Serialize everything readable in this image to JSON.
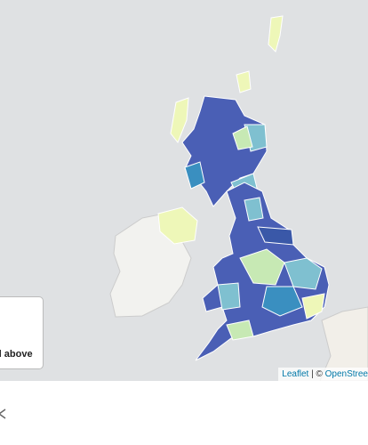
{
  "legend": {
    "label": "d above"
  },
  "attribution": {
    "leaflet": "Leaflet",
    "separator": "|",
    "copyright": "©",
    "osm": "OpenStree"
  }
}
